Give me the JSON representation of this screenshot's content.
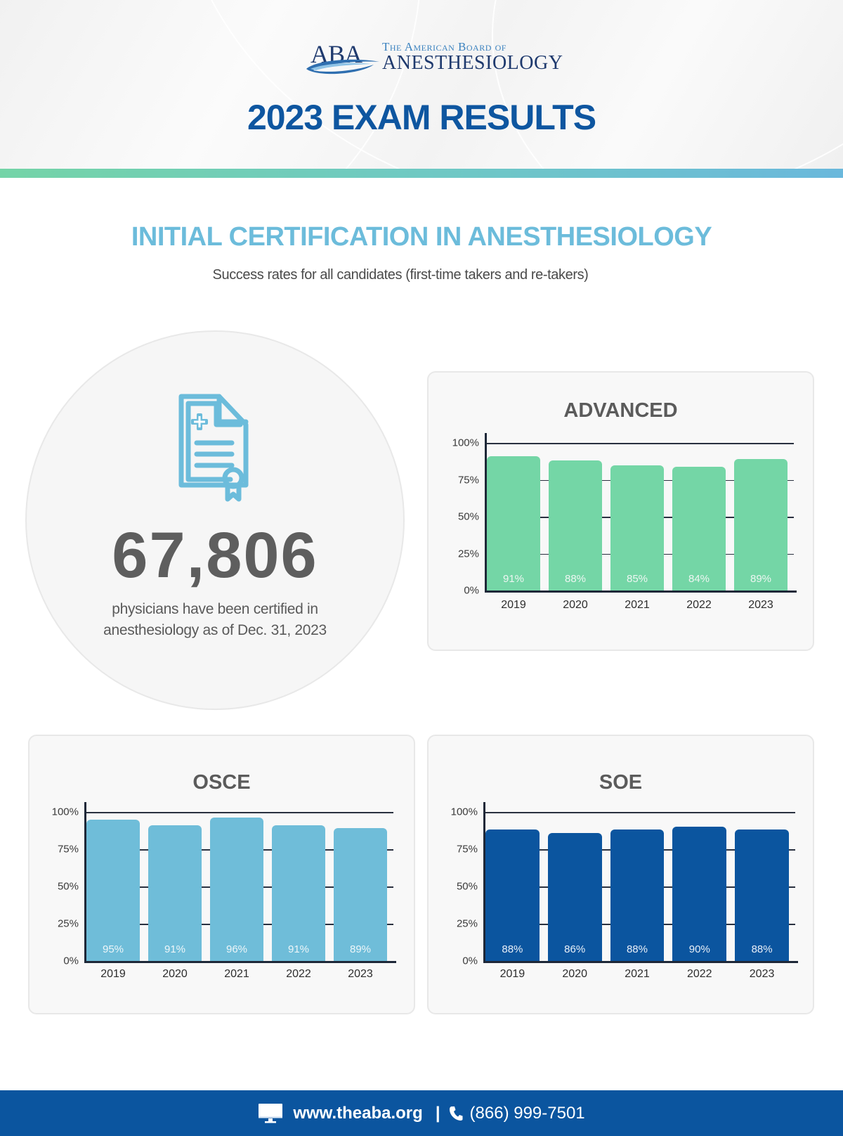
{
  "header": {
    "logo": {
      "abbr": "ABA",
      "line1": "The American Board of",
      "line2": "ANESTHESIOLOGY"
    },
    "title": "2023 EXAM RESULTS"
  },
  "section": {
    "title": "INITIAL CERTIFICATION IN ANESTHESIOLOGY",
    "subtitle": "Success rates for all candidates (first-time takers and re-takers)"
  },
  "stat": {
    "icon": "medical-certificate-icon",
    "number": "67,806",
    "caption_line1": "physicians have been certified in",
    "caption_line2": "anesthesiology as of Dec. 31, 2023"
  },
  "colors": {
    "brand_blue": "#0e56a0",
    "section_blue": "#6cbcdb",
    "advanced_green": "#74d6a6",
    "osce_blue": "#6fbdd9",
    "soe_navy": "#0b559f",
    "footer_bg": "#0b559f"
  },
  "chart_data": [
    {
      "type": "bar",
      "title": "ADVANCED",
      "categories": [
        "2019",
        "2020",
        "2021",
        "2022",
        "2023"
      ],
      "values": [
        91,
        88,
        85,
        84,
        89
      ],
      "value_labels": [
        "91%",
        "88%",
        "85%",
        "84%",
        "89%"
      ],
      "yticks": [
        "100%",
        "75%",
        "50%",
        "25%",
        "0%"
      ],
      "ylim": [
        0,
        100
      ],
      "xlabel": "",
      "ylabel": "",
      "grid": true,
      "color": "#74d6a6",
      "label_color": "#eef6f2"
    },
    {
      "type": "bar",
      "title": "OSCE",
      "categories": [
        "2019",
        "2020",
        "2021",
        "2022",
        "2023"
      ],
      "values": [
        95,
        91,
        96,
        91,
        89
      ],
      "value_labels": [
        "95%",
        "91%",
        "96%",
        "91%",
        "89%"
      ],
      "yticks": [
        "100%",
        "75%",
        "50%",
        "25%",
        "0%"
      ],
      "ylim": [
        0,
        100
      ],
      "xlabel": "",
      "ylabel": "",
      "grid": true,
      "color": "#6fbdd9",
      "label_color": "#eef6f9"
    },
    {
      "type": "bar",
      "title": "SOE",
      "categories": [
        "2019",
        "2020",
        "2021",
        "2022",
        "2023"
      ],
      "values": [
        88,
        86,
        88,
        90,
        88
      ],
      "value_labels": [
        "88%",
        "86%",
        "88%",
        "90%",
        "88%"
      ],
      "yticks": [
        "100%",
        "75%",
        "50%",
        "25%",
        "0%"
      ],
      "ylim": [
        0,
        100
      ],
      "xlabel": "",
      "ylabel": "",
      "grid": true,
      "color": "#0b559f",
      "label_color": "#e9f0f8"
    }
  ],
  "footer": {
    "website_icon": "monitor-icon",
    "website": "www.theaba.org",
    "separator": "|",
    "phone_icon": "phone-icon",
    "phone": "(866) 999-7501"
  }
}
